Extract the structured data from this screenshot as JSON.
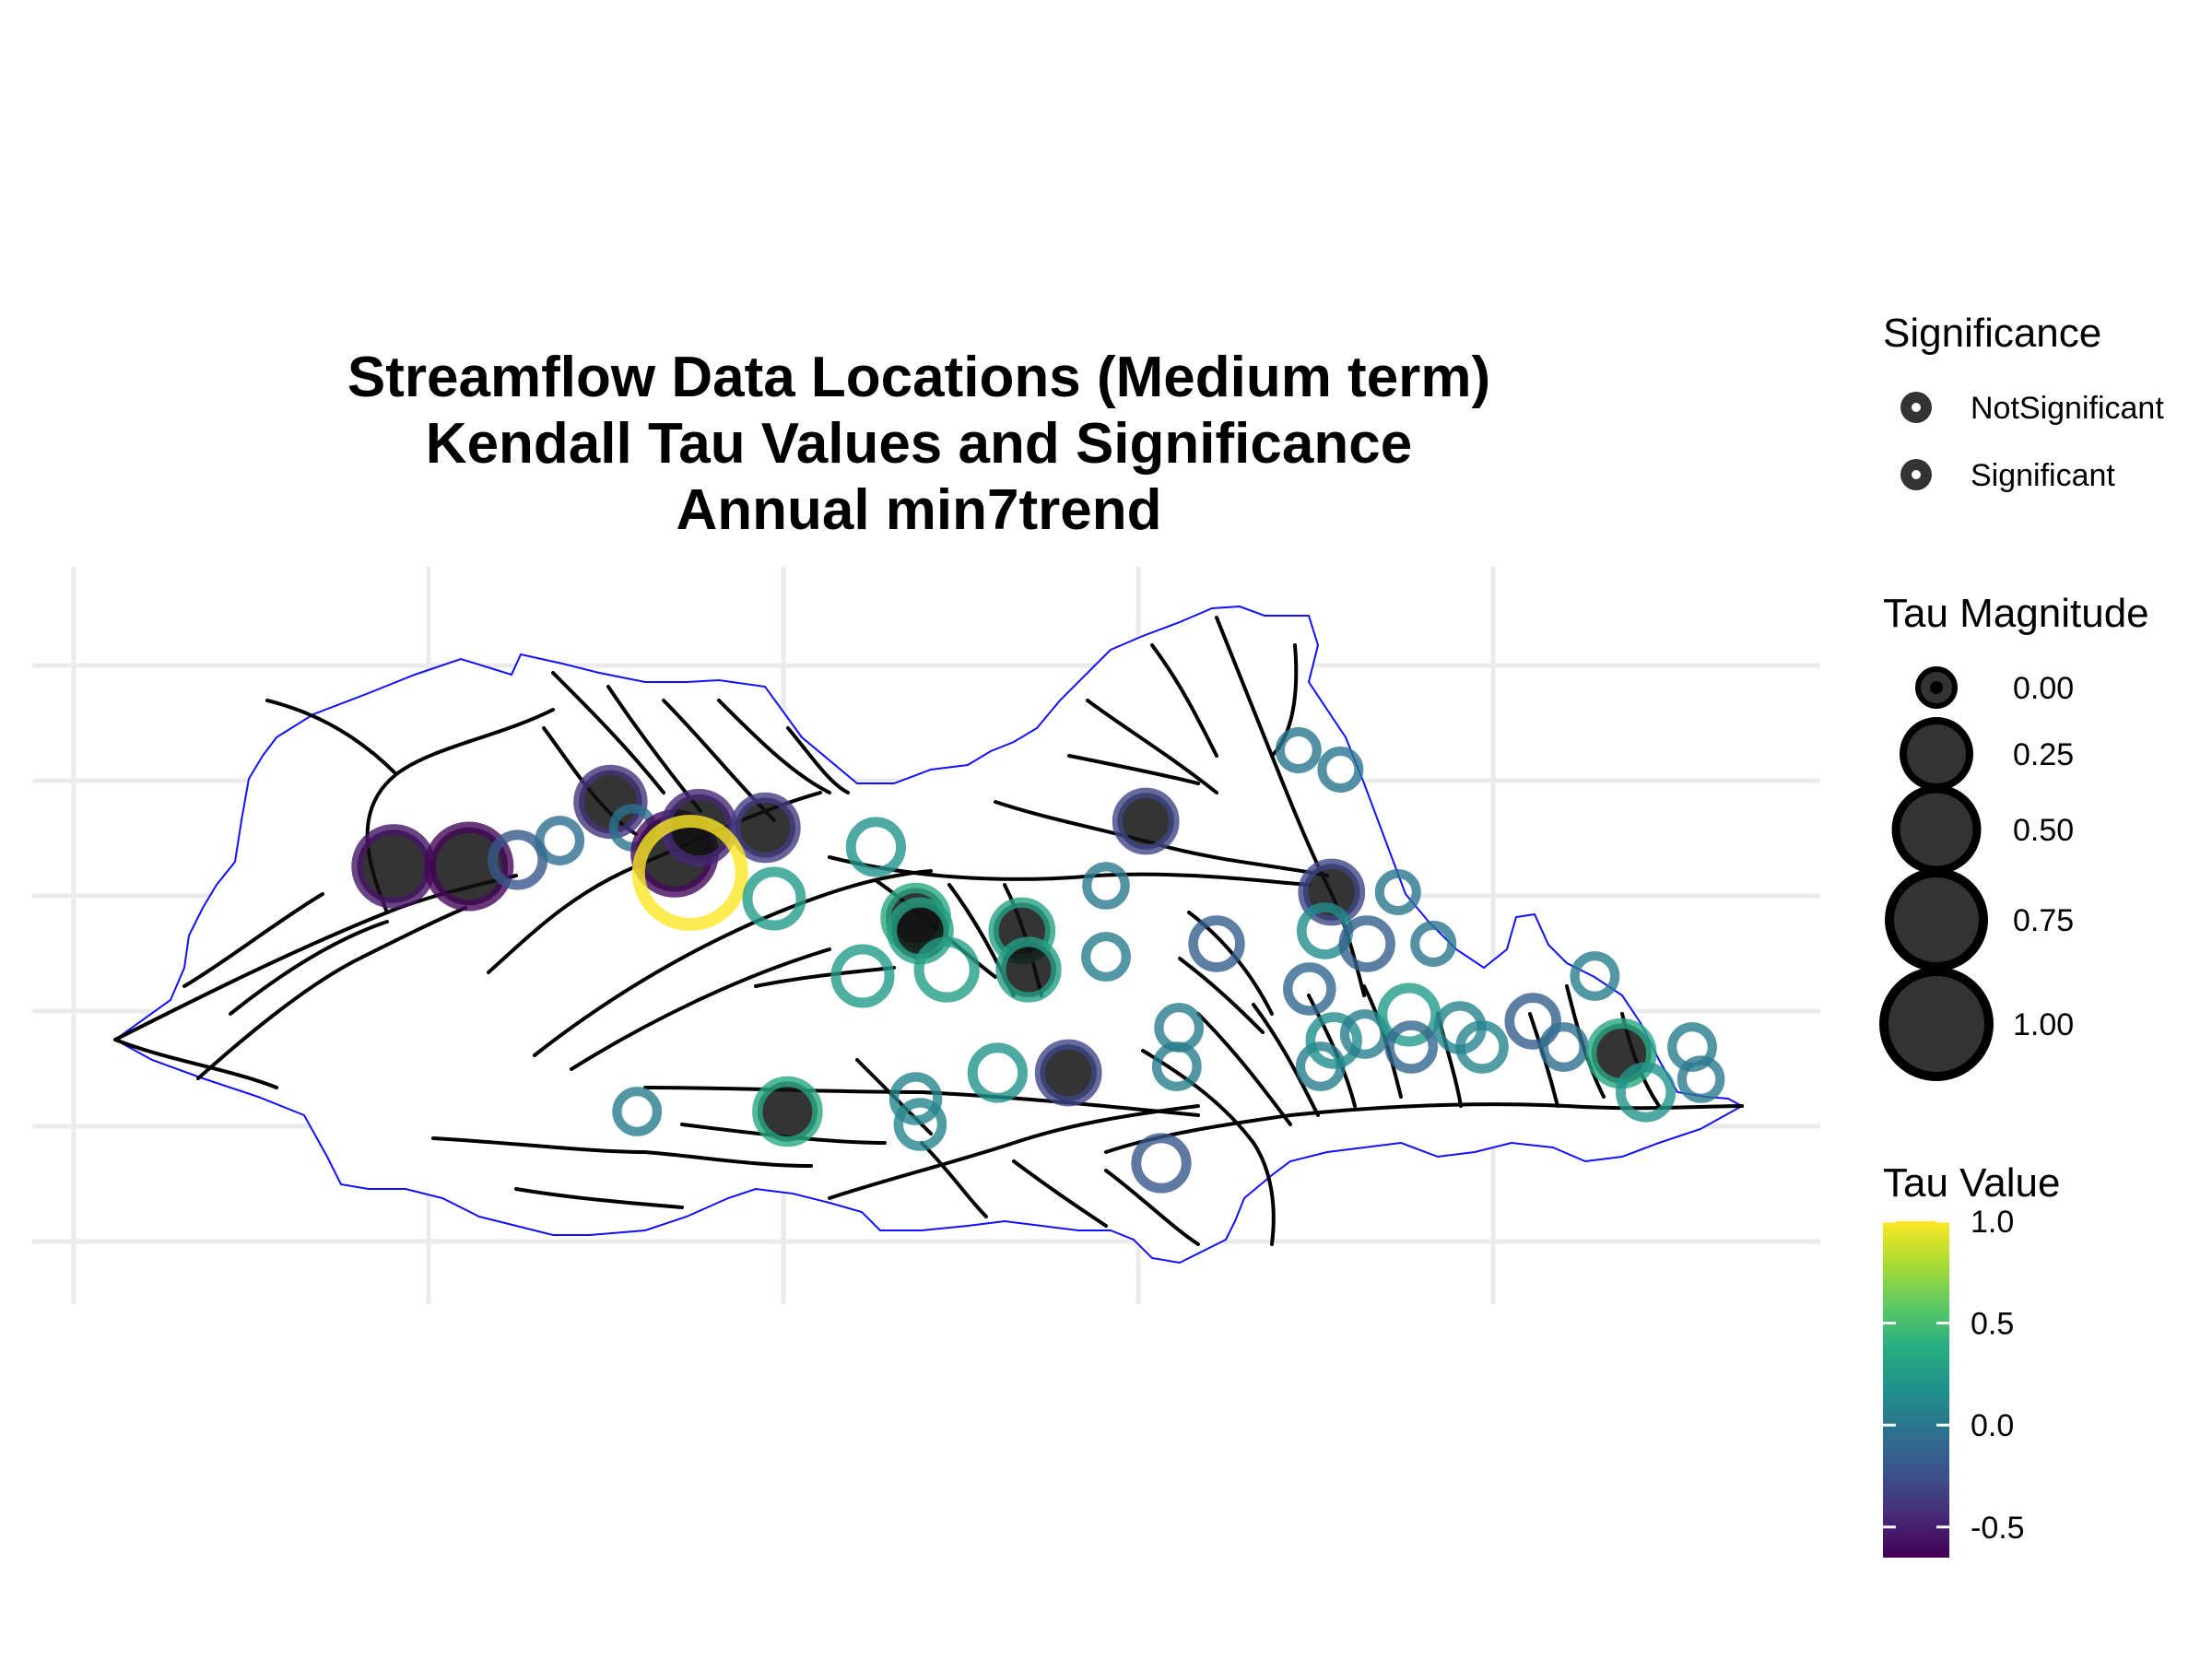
{
  "title": {
    "line1": "Streamflow Data Locations (Medium term)",
    "line2": "Kendall Tau Values and Significance",
    "line3": "Annual min7trend"
  },
  "legend": {
    "significance": {
      "title": "Significance",
      "items": [
        "NotSignificant",
        "Significant"
      ]
    },
    "magnitude": {
      "title": "Tau Magnitude",
      "items": [
        {
          "label": "0.00",
          "value": 0.0
        },
        {
          "label": "0.25",
          "value": 0.25
        },
        {
          "label": "0.50",
          "value": 0.5
        },
        {
          "label": "0.75",
          "value": 0.75
        },
        {
          "label": "1.00",
          "value": 1.0
        }
      ]
    },
    "tau_value": {
      "title": "Tau Value",
      "min": -0.65,
      "max": 1.0,
      "ticks": [
        {
          "label": "1.0",
          "value": 1.0
        },
        {
          "label": "0.5",
          "value": 0.5
        },
        {
          "label": "0.0",
          "value": 0.0
        },
        {
          "label": "-0.5",
          "value": -0.5
        }
      ],
      "palette": "viridis"
    }
  },
  "colors": {
    "basin_outline": "#1010ff",
    "rivers": "#000000",
    "grid": "#ebebeb",
    "significant_fill": "#000000"
  },
  "chart_data": {
    "type": "scatter",
    "title": "Streamflow Data Locations (Medium term) / Kendall Tau Values and Significance / Annual min7trend",
    "color_scale": "viridis",
    "color_range": [
      -0.65,
      1.0
    ],
    "stations": [
      {
        "lon": 0.178,
        "lat": 0.6,
        "tau": -0.55,
        "significant": true
      },
      {
        "lon": 0.212,
        "lat": 0.6,
        "tau": -0.62,
        "significant": true
      },
      {
        "lon": 0.234,
        "lat": 0.61,
        "tau": -0.2,
        "significant": false
      },
      {
        "lon": 0.276,
        "lat": 0.7,
        "tau": -0.4,
        "significant": true
      },
      {
        "lon": 0.253,
        "lat": 0.64,
        "tau": -0.05,
        "significant": false
      },
      {
        "lon": 0.286,
        "lat": 0.66,
        "tau": -0.02,
        "significant": false
      },
      {
        "lon": 0.305,
        "lat": 0.62,
        "tau": -0.6,
        "significant": true
      },
      {
        "lon": 0.316,
        "lat": 0.66,
        "tau": -0.45,
        "significant": true
      },
      {
        "lon": 0.346,
        "lat": 0.66,
        "tau": -0.35,
        "significant": true
      },
      {
        "lon": 0.312,
        "lat": 0.59,
        "tau": 1.0,
        "significant": false
      },
      {
        "lon": 0.396,
        "lat": 0.63,
        "tau": 0.2,
        "significant": false
      },
      {
        "lon": 0.35,
        "lat": 0.55,
        "tau": 0.25,
        "significant": false
      },
      {
        "lon": 0.414,
        "lat": 0.52,
        "tau": 0.35,
        "significant": true
      },
      {
        "lon": 0.416,
        "lat": 0.5,
        "tau": 0.3,
        "significant": true
      },
      {
        "lon": 0.39,
        "lat": 0.43,
        "tau": 0.25,
        "significant": false
      },
      {
        "lon": 0.428,
        "lat": 0.44,
        "tau": 0.28,
        "significant": false
      },
      {
        "lon": 0.462,
        "lat": 0.5,
        "tau": 0.3,
        "significant": true
      },
      {
        "lon": 0.465,
        "lat": 0.44,
        "tau": 0.28,
        "significant": true
      },
      {
        "lon": 0.5,
        "lat": 0.46,
        "tau": 0.05,
        "significant": false
      },
      {
        "lon": 0.5,
        "lat": 0.57,
        "tau": 0.02,
        "significant": false
      },
      {
        "lon": 0.518,
        "lat": 0.67,
        "tau": -0.3,
        "significant": true
      },
      {
        "lon": 0.288,
        "lat": 0.22,
        "tau": 0.05,
        "significant": false
      },
      {
        "lon": 0.356,
        "lat": 0.22,
        "tau": 0.35,
        "significant": true
      },
      {
        "lon": 0.414,
        "lat": 0.24,
        "tau": 0.1,
        "significant": false
      },
      {
        "lon": 0.416,
        "lat": 0.2,
        "tau": 0.1,
        "significant": false
      },
      {
        "lon": 0.451,
        "lat": 0.28,
        "tau": 0.2,
        "significant": false
      },
      {
        "lon": 0.483,
        "lat": 0.28,
        "tau": -0.3,
        "significant": true
      },
      {
        "lon": 0.533,
        "lat": 0.35,
        "tau": 0.05,
        "significant": false
      },
      {
        "lon": 0.532,
        "lat": 0.29,
        "tau": 0.05,
        "significant": false
      },
      {
        "lon": 0.525,
        "lat": 0.14,
        "tau": -0.2,
        "significant": false
      },
      {
        "lon": 0.55,
        "lat": 0.48,
        "tau": -0.15,
        "significant": false
      },
      {
        "lon": 0.592,
        "lat": 0.41,
        "tau": -0.1,
        "significant": false
      },
      {
        "lon": 0.587,
        "lat": 0.78,
        "tau": 0.0,
        "significant": false
      },
      {
        "lon": 0.606,
        "lat": 0.75,
        "tau": 0.0,
        "significant": false
      },
      {
        "lon": 0.602,
        "lat": 0.56,
        "tau": -0.3,
        "significant": true
      },
      {
        "lon": 0.632,
        "lat": 0.56,
        "tau": 0.0,
        "significant": false
      },
      {
        "lon": 0.599,
        "lat": 0.5,
        "tau": 0.15,
        "significant": false
      },
      {
        "lon": 0.618,
        "lat": 0.48,
        "tau": -0.15,
        "significant": false
      },
      {
        "lon": 0.648,
        "lat": 0.48,
        "tau": 0.0,
        "significant": false
      },
      {
        "lon": 0.597,
        "lat": 0.29,
        "tau": 0.05,
        "significant": false
      },
      {
        "lon": 0.603,
        "lat": 0.33,
        "tau": 0.15,
        "significant": false
      },
      {
        "lon": 0.617,
        "lat": 0.34,
        "tau": 0.05,
        "significant": false
      },
      {
        "lon": 0.637,
        "lat": 0.37,
        "tau": 0.25,
        "significant": false
      },
      {
        "lon": 0.638,
        "lat": 0.32,
        "tau": -0.1,
        "significant": false
      },
      {
        "lon": 0.66,
        "lat": 0.35,
        "tau": 0.1,
        "significant": false
      },
      {
        "lon": 0.67,
        "lat": 0.32,
        "tau": 0.1,
        "significant": false
      },
      {
        "lon": 0.693,
        "lat": 0.36,
        "tau": -0.15,
        "significant": false
      },
      {
        "lon": 0.707,
        "lat": 0.32,
        "tau": -0.05,
        "significant": false
      },
      {
        "lon": 0.721,
        "lat": 0.43,
        "tau": 0.05,
        "significant": false
      },
      {
        "lon": 0.733,
        "lat": 0.31,
        "tau": 0.35,
        "significant": true
      },
      {
        "lon": 0.744,
        "lat": 0.25,
        "tau": 0.2,
        "significant": false
      },
      {
        "lon": 0.765,
        "lat": 0.32,
        "tau": 0.05,
        "significant": false
      },
      {
        "lon": 0.769,
        "lat": 0.27,
        "tau": 0.02,
        "significant": false
      }
    ]
  }
}
